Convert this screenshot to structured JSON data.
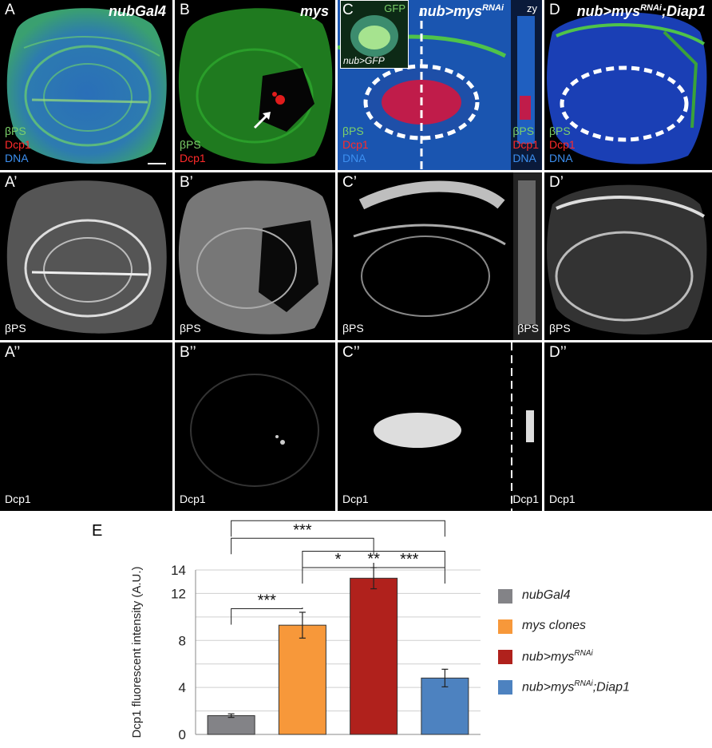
{
  "panels": {
    "row1": [
      {
        "label": "A",
        "title": "nubGal4",
        "stain": [
          "βPS",
          "Dcp1",
          "DNA"
        ]
      },
      {
        "label": "B",
        "title": "mys",
        "stain": [
          "βPS",
          "Dcp1"
        ]
      },
      {
        "label": "C",
        "title": "nub>mys",
        "title_sup": "RNAi",
        "stain": [
          "βPS",
          "Dcp1",
          "DNA"
        ],
        "inset_top": "GFP",
        "inset_bottom": "nub>GFP",
        "zy": "zy",
        "zy_stain": [
          "βPS",
          "Dcp1",
          "DNA"
        ]
      },
      {
        "label": "D",
        "title": "nub>mys",
        "title_sup": "RNAi",
        "title_tail": ";Diap1",
        "stain": [
          "βPS",
          "Dcp1",
          "DNA"
        ]
      }
    ],
    "row2": [
      {
        "label": "A’",
        "stain": "βPS"
      },
      {
        "label": "B’",
        "stain": "βPS"
      },
      {
        "label": "C’",
        "stain": "βPS",
        "zy_stain": "βPS"
      },
      {
        "label": "D’",
        "stain": "βPS"
      }
    ],
    "row3": [
      {
        "label": "A’’",
        "stain": "Dcp1"
      },
      {
        "label": "B’’",
        "stain": "Dcp1"
      },
      {
        "label": "C’’",
        "stain": "Dcp1",
        "zy_stain": "Dcp1"
      },
      {
        "label": "D’’",
        "stain": "Dcp1"
      }
    ]
  },
  "chart_label": "E",
  "chart_data": {
    "type": "bar",
    "ylabel": "Dcp1 fluorescent intensity (A.U.)",
    "ylim": [
      0,
      14
    ],
    "yticks": [
      0,
      4,
      8,
      12
    ],
    "grid": true,
    "categories": [
      "nubGal4",
      "mys clones",
      "nub>mysRNAi",
      "nub>mysRNAi;Diap1"
    ],
    "values": [
      1.6,
      9.3,
      13.3,
      4.8
    ],
    "errors": [
      0.15,
      1.1,
      0.9,
      0.75
    ],
    "colors": [
      "#838387",
      "#f7983a",
      "#b0211c",
      "#4d82c0"
    ],
    "significance": [
      {
        "pair": [
          0,
          1
        ],
        "label": "***"
      },
      {
        "pair": [
          1,
          2
        ],
        "label": "*"
      },
      {
        "pair": [
          2,
          3
        ],
        "label": "***"
      },
      {
        "pair": [
          1,
          3
        ],
        "label": "**"
      },
      {
        "pair": [
          0,
          2
        ],
        "label": "***"
      },
      {
        "pair": [
          0,
          3
        ],
        "label": "**"
      }
    ],
    "legend": [
      {
        "text": "nubGal4",
        "color": "#838387"
      },
      {
        "text": "mys clones",
        "color": "#f7983a"
      },
      {
        "text": "nub>mys",
        "sup": "RNAi",
        "color": "#b0211c"
      },
      {
        "text": "nub>mys",
        "sup": "RNAi",
        "tail": ";Diap1",
        "color": "#4d82c0"
      }
    ]
  }
}
